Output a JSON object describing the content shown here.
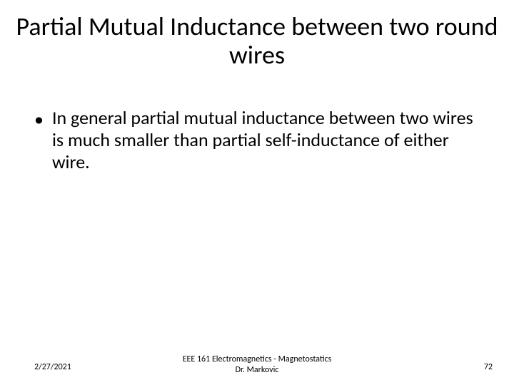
{
  "slide": {
    "title": "Partial Mutual Inductance between two round wires",
    "title_fontsize": 36,
    "bullets": [
      {
        "text": "In general partial mutual inductance between two wires is much smaller than  partial self-inductance of either wire."
      }
    ],
    "body_fontsize": 26,
    "background_color": "#ffffff",
    "text_color": "#000000"
  },
  "footer": {
    "date": "2/27/2021",
    "center_line1": "EEE 161 Electromagnetics - Magnetostatics",
    "center_line2": "Dr. Markovic",
    "page_number": "72",
    "footer_fontsize": 12
  }
}
